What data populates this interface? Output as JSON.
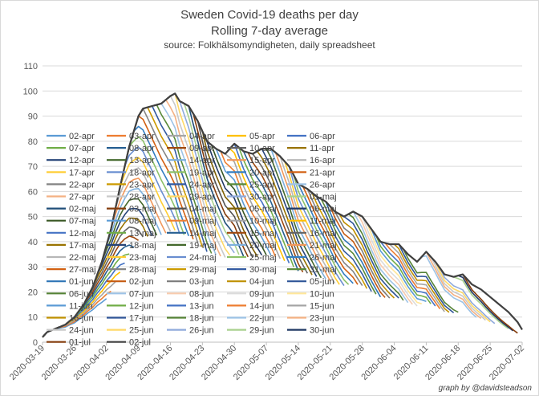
{
  "chart_data": {
    "type": "line",
    "title": "Sweden Covid-19 deaths per day",
    "subtitle": "Rolling 7-day average",
    "source": "source: Folkhälsomyndigheten, daily spreadsheet",
    "credit": "graph by @davidsteadson",
    "ylim": [
      0,
      110
    ],
    "yticks": [
      0,
      10,
      20,
      30,
      40,
      50,
      60,
      70,
      80,
      90,
      100,
      110
    ],
    "x_range": [
      "2020-03-19",
      "2020-07-02"
    ],
    "xticks": [
      "2020-03-19",
      "2020-03-26",
      "2020-04-02",
      "2020-04-09",
      "2020-04-16",
      "2020-04-23",
      "2020-04-30",
      "2020-05-07",
      "2020-05-14",
      "2020-05-21",
      "2020-05-28",
      "2020-06-04",
      "2020-06-11",
      "2020-06-18",
      "2020-06-25",
      "2020-07-02"
    ],
    "grid": true,
    "legend_position": "inside-center",
    "final_curve": {
      "name": "02-jul",
      "points": [
        [
          "2020-03-19",
          2
        ],
        [
          "2020-03-20",
          4
        ],
        [
          "2020-03-22",
          5.5
        ],
        [
          "2020-03-24",
          7
        ],
        [
          "2020-03-26",
          10
        ],
        [
          "2020-03-28",
          15
        ],
        [
          "2020-03-30",
          22
        ],
        [
          "2020-04-01",
          32
        ],
        [
          "2020-04-03",
          45
        ],
        [
          "2020-04-05",
          62
        ],
        [
          "2020-04-07",
          78
        ],
        [
          "2020-04-09",
          90
        ],
        [
          "2020-04-10",
          93
        ],
        [
          "2020-04-12",
          94
        ],
        [
          "2020-04-14",
          95
        ],
        [
          "2020-04-16",
          98
        ],
        [
          "2020-04-17",
          99
        ],
        [
          "2020-04-18",
          96
        ],
        [
          "2020-04-20",
          94
        ],
        [
          "2020-04-22",
          88
        ],
        [
          "2020-04-24",
          80
        ],
        [
          "2020-04-26",
          77
        ],
        [
          "2020-04-28",
          75
        ],
        [
          "2020-04-30",
          79
        ],
        [
          "2020-05-02",
          76
        ],
        [
          "2020-05-04",
          75
        ],
        [
          "2020-05-06",
          77
        ],
        [
          "2020-05-08",
          77
        ],
        [
          "2020-05-10",
          74
        ],
        [
          "2020-05-12",
          70
        ],
        [
          "2020-05-14",
          63
        ],
        [
          "2020-05-16",
          61
        ],
        [
          "2020-05-18",
          58
        ],
        [
          "2020-05-20",
          56
        ],
        [
          "2020-05-22",
          52
        ],
        [
          "2020-05-24",
          50
        ],
        [
          "2020-05-26",
          52
        ],
        [
          "2020-05-28",
          50
        ],
        [
          "2020-05-30",
          45
        ],
        [
          "2020-06-01",
          40
        ],
        [
          "2020-06-03",
          39
        ],
        [
          "2020-06-05",
          39
        ],
        [
          "2020-06-07",
          35
        ],
        [
          "2020-06-09",
          32
        ],
        [
          "2020-06-11",
          36
        ],
        [
          "2020-06-13",
          32
        ],
        [
          "2020-06-15",
          27
        ],
        [
          "2020-06-17",
          26
        ],
        [
          "2020-06-19",
          27
        ],
        [
          "2020-06-21",
          23
        ],
        [
          "2020-06-23",
          21
        ],
        [
          "2020-06-25",
          18
        ],
        [
          "2020-06-27",
          15
        ],
        [
          "2020-06-29",
          12
        ],
        [
          "2020-07-01",
          8
        ],
        [
          "2020-07-02",
          5
        ]
      ]
    },
    "series": [
      {
        "name": "02-apr",
        "color": "#5b9bd5"
      },
      {
        "name": "03-apr",
        "color": "#ed7d31"
      },
      {
        "name": "04-apr",
        "color": "#a5a5a5"
      },
      {
        "name": "05-apr",
        "color": "#ffc000"
      },
      {
        "name": "06-apr",
        "color": "#4472c4"
      },
      {
        "name": "07-apr",
        "color": "#70ad47"
      },
      {
        "name": "08-apr",
        "color": "#255e91"
      },
      {
        "name": "09-apr",
        "color": "#9e480e"
      },
      {
        "name": "10-apr",
        "color": "#636363"
      },
      {
        "name": "11-apr",
        "color": "#997300"
      },
      {
        "name": "12-apr",
        "color": "#264478"
      },
      {
        "name": "13-apr",
        "color": "#43682b"
      },
      {
        "name": "14-apr",
        "color": "#7cafdd"
      },
      {
        "name": "15-apr",
        "color": "#f1975a"
      },
      {
        "name": "16-apr",
        "color": "#b7b7b7"
      },
      {
        "name": "17-apr",
        "color": "#ffcd33"
      },
      {
        "name": "18-apr",
        "color": "#698ed0"
      },
      {
        "name": "19-apr",
        "color": "#8cc168"
      },
      {
        "name": "20-apr",
        "color": "#327dc2"
      },
      {
        "name": "21-apr",
        "color": "#d26012"
      },
      {
        "name": "22-apr",
        "color": "#848484"
      },
      {
        "name": "23-apr",
        "color": "#cc9a00"
      },
      {
        "name": "24-apr",
        "color": "#335aa1"
      },
      {
        "name": "25-apr",
        "color": "#5a8a39"
      },
      {
        "name": "26-apr",
        "color": "#9dc3e6"
      },
      {
        "name": "27-apr",
        "color": "#f4b183"
      },
      {
        "name": "28-apr",
        "color": "#c9c9c9"
      },
      {
        "name": "29-apr",
        "color": "#ffd966"
      },
      {
        "name": "30-apr",
        "color": "#8faadc"
      },
      {
        "name": "01-maj",
        "color": "#a9d18e"
      },
      {
        "name": "02-maj",
        "color": "#1f4e79"
      },
      {
        "name": "03-maj",
        "color": "#843c0c"
      },
      {
        "name": "04-maj",
        "color": "#525252"
      },
      {
        "name": "05-maj",
        "color": "#7f6000"
      },
      {
        "name": "06-maj",
        "color": "#203864"
      },
      {
        "name": "07-maj",
        "color": "#385723"
      },
      {
        "name": "08-maj",
        "color": "#5b9bd5"
      },
      {
        "name": "09-maj",
        "color": "#ed7d31"
      },
      {
        "name": "10-maj",
        "color": "#a5a5a5"
      },
      {
        "name": "11-maj",
        "color": "#ffc000"
      },
      {
        "name": "12-maj",
        "color": "#4472c4"
      },
      {
        "name": "13-maj",
        "color": "#70ad47"
      },
      {
        "name": "14-maj",
        "color": "#255e91"
      },
      {
        "name": "15-maj",
        "color": "#9e480e"
      },
      {
        "name": "16-maj",
        "color": "#636363"
      },
      {
        "name": "17-maj",
        "color": "#997300"
      },
      {
        "name": "18-maj",
        "color": "#264478"
      },
      {
        "name": "19-maj",
        "color": "#43682b"
      },
      {
        "name": "20-maj",
        "color": "#7cafdd"
      },
      {
        "name": "21-maj",
        "color": "#f1975a"
      },
      {
        "name": "22-maj",
        "color": "#b7b7b7"
      },
      {
        "name": "23-maj",
        "color": "#ffcd33"
      },
      {
        "name": "24-maj",
        "color": "#698ed0"
      },
      {
        "name": "25-maj",
        "color": "#8cc168"
      },
      {
        "name": "26-maj",
        "color": "#327dc2"
      },
      {
        "name": "27-maj",
        "color": "#d26012"
      },
      {
        "name": "28-maj",
        "color": "#848484"
      },
      {
        "name": "29-maj",
        "color": "#cc9a00"
      },
      {
        "name": "30-maj",
        "color": "#335aa1"
      },
      {
        "name": "31-maj",
        "color": "#5a8a39"
      },
      {
        "name": "01-jun",
        "color": "#2e75b6"
      },
      {
        "name": "02-jun",
        "color": "#c55a11"
      },
      {
        "name": "03-jun",
        "color": "#7b7b7b"
      },
      {
        "name": "04-jun",
        "color": "#bf9000"
      },
      {
        "name": "05-jun",
        "color": "#2f5597"
      },
      {
        "name": "06-jun",
        "color": "#548235"
      },
      {
        "name": "07-jun",
        "color": "#9dc3e6"
      },
      {
        "name": "08-jun",
        "color": "#f8cbad"
      },
      {
        "name": "09-jun",
        "color": "#dbdbdb"
      },
      {
        "name": "10-jun",
        "color": "#ffe699"
      },
      {
        "name": "11-jun",
        "color": "#5b9bd5"
      },
      {
        "name": "12-jun",
        "color": "#70ad47"
      },
      {
        "name": "13-jun",
        "color": "#4472c4"
      },
      {
        "name": "14-jun",
        "color": "#ed7d31"
      },
      {
        "name": "15-jun",
        "color": "#a5a5a5"
      },
      {
        "name": "16-jun",
        "color": "#bf9000"
      },
      {
        "name": "17-jun",
        "color": "#2f5597"
      },
      {
        "name": "18-jun",
        "color": "#548235"
      },
      {
        "name": "22-jun",
        "color": "#9dc3e6"
      },
      {
        "name": "23-jun",
        "color": "#f4b183"
      },
      {
        "name": "24-jun",
        "color": "#c9c9c9"
      },
      {
        "name": "25-jun",
        "color": "#ffd966"
      },
      {
        "name": "26-jun",
        "color": "#8faadc"
      },
      {
        "name": "29-jun",
        "color": "#a9d18e"
      },
      {
        "name": "30-jun",
        "color": "#203864"
      },
      {
        "name": "01-jul",
        "color": "#843c0c"
      },
      {
        "name": "02-jul",
        "color": "#404040"
      }
    ]
  }
}
